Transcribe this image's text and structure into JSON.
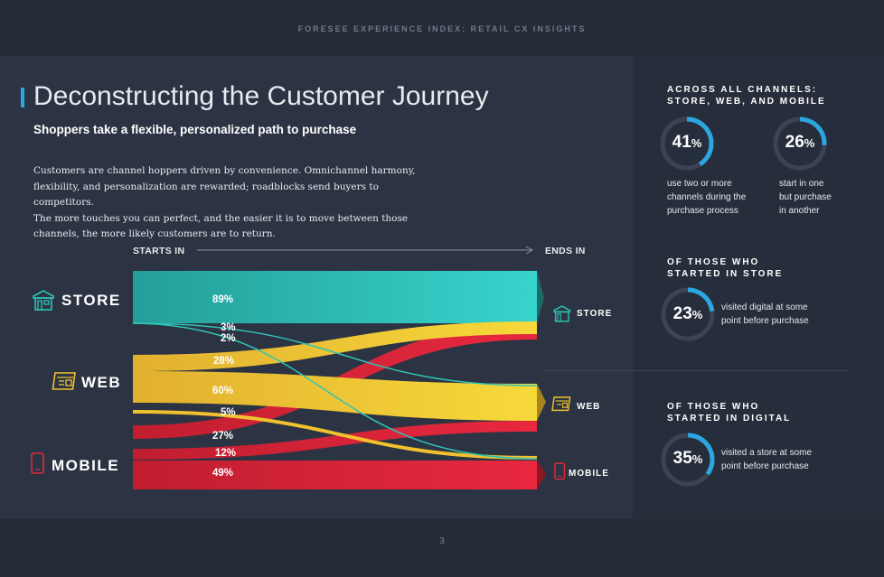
{
  "header": {
    "title": "FORESEE EXPERIENCE INDEX: RETAIL CX INSIGHTS"
  },
  "main": {
    "title": "Deconstructing the Customer Journey",
    "subtitle": "Shoppers take a flexible, personalized path to purchase",
    "body_lines": [
      "Customers are channel hoppers driven by convenience. Omnichannel harmony,",
      "flexibility, and personalization are rewarded; roadblocks send buyers to competitors.",
      "The more touches you can perfect, and the easier it is to move between those",
      "channels, the more likely customers are to return."
    ]
  },
  "flow": {
    "starts_label": "STARTS IN",
    "ends_label": "ENDS IN",
    "channels": {
      "store": {
        "label": "STORE",
        "color": "#2fc3b6",
        "icon": "store-icon"
      },
      "web": {
        "label": "WEB",
        "color": "#f2c12e",
        "icon": "web-icon"
      },
      "mobile": {
        "label": "MOBILE",
        "color": "#e0283c",
        "icon": "mobile-icon"
      }
    },
    "percentages": {
      "store_store": "89%",
      "store_web": "3%",
      "store_mobile": "2%",
      "web_store": "28%",
      "web_web": "60%",
      "web_mobile": "5%",
      "mobile_store": "27%",
      "mobile_web": "12%",
      "mobile_mobile": "49%"
    }
  },
  "side": {
    "section1": {
      "heading_line1": "ACROSS ALL CHANNELS:",
      "heading_line2": "STORE, WEB, AND MOBILE",
      "stat1": {
        "value": "41",
        "unit": "%",
        "fraction": 0.41,
        "text": [
          "use two or more",
          "channels during the",
          "purchase process"
        ]
      },
      "stat2": {
        "value": "26",
        "unit": "%",
        "fraction": 0.26,
        "text": [
          "start in one",
          "but purchase",
          "in another"
        ]
      }
    },
    "section2": {
      "heading_line1": "OF THOSE WHO",
      "heading_line2": "STARTED IN STORE",
      "stat": {
        "value": "23",
        "unit": "%",
        "fraction": 0.23,
        "text": [
          "visited digital at some",
          "point before purchase"
        ]
      }
    },
    "section3": {
      "heading_line1": "OF THOSE WHO",
      "heading_line2": "STARTED IN DIGITAL",
      "stat": {
        "value": "35",
        "unit": "%",
        "fraction": 0.35,
        "text": [
          "visited a store at some",
          "point before purchase"
        ]
      }
    },
    "ring_color": "#2aa7e0",
    "ring_track_color": "#3a4454"
  },
  "footer": {
    "page_number": "3"
  }
}
